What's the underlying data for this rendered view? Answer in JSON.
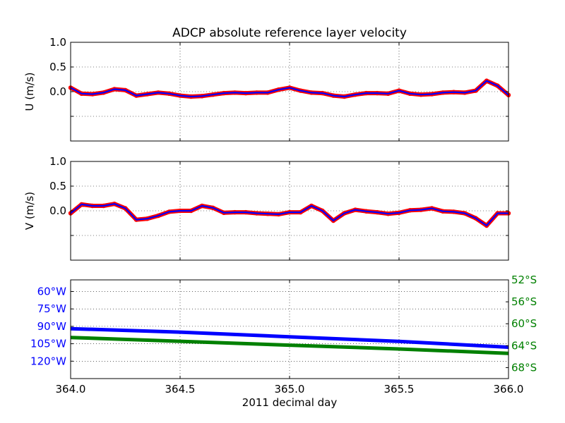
{
  "title": "ADCP absolute reference layer velocity",
  "colors": {
    "blue": "#0000ff",
    "red": "#ff0000",
    "green": "#008000",
    "grid": "#000000"
  },
  "chart_data": [
    {
      "type": "line",
      "panel": "u",
      "ylabel": "U (m/s)",
      "xlim": [
        364.0,
        366.0
      ],
      "ylim": [
        -1.0,
        1.0
      ],
      "yticks": [
        -0.5,
        0.0,
        0.5,
        1.0
      ],
      "ytick_labels": [
        "",
        "0.0",
        "0.5",
        "1.0"
      ],
      "grid": true,
      "series": [
        {
          "style": "scatter",
          "color": "red",
          "x": [
            364.0,
            364.05,
            364.1,
            364.15,
            364.2,
            364.25,
            364.3,
            364.35,
            364.4,
            364.45,
            364.5,
            364.55,
            364.6,
            364.65,
            364.7,
            364.75,
            364.8,
            364.85,
            364.9,
            364.95,
            365.0,
            365.05,
            365.1,
            365.15,
            365.2,
            365.25,
            365.3,
            365.35,
            365.4,
            365.45,
            365.5,
            365.55,
            365.6,
            365.65,
            365.7,
            365.75,
            365.8,
            365.85,
            365.9,
            365.95,
            366.0
          ],
          "y": [
            0.08,
            -0.04,
            -0.05,
            -0.02,
            0.05,
            0.03,
            -0.08,
            -0.05,
            -0.02,
            -0.04,
            -0.08,
            -0.1,
            -0.09,
            -0.06,
            -0.03,
            -0.02,
            -0.03,
            -0.02,
            -0.02,
            0.04,
            0.08,
            0.02,
            -0.02,
            -0.03,
            -0.08,
            -0.1,
            -0.06,
            -0.03,
            -0.03,
            -0.04,
            0.02,
            -0.04,
            -0.06,
            -0.05,
            -0.02,
            -0.01,
            -0.02,
            0.02,
            0.22,
            0.12,
            -0.07
          ]
        },
        {
          "style": "line",
          "color": "blue",
          "x": [
            364.0,
            364.05,
            364.1,
            364.15,
            364.2,
            364.25,
            364.3,
            364.35,
            364.4,
            364.45,
            364.5,
            364.55,
            364.6,
            364.65,
            364.7,
            364.75,
            364.8,
            364.85,
            364.9,
            364.95,
            365.0,
            365.05,
            365.1,
            365.15,
            365.2,
            365.25,
            365.3,
            365.35,
            365.4,
            365.45,
            365.5,
            365.55,
            365.6,
            365.65,
            365.7,
            365.75,
            365.8,
            365.85,
            365.9,
            365.95,
            366.0
          ],
          "y": [
            0.08,
            -0.04,
            -0.05,
            -0.02,
            0.05,
            0.03,
            -0.08,
            -0.05,
            -0.02,
            -0.04,
            -0.08,
            -0.1,
            -0.09,
            -0.06,
            -0.03,
            -0.02,
            -0.03,
            -0.02,
            -0.02,
            0.04,
            0.08,
            0.02,
            -0.02,
            -0.03,
            -0.08,
            -0.1,
            -0.06,
            -0.03,
            -0.03,
            -0.04,
            0.02,
            -0.04,
            -0.06,
            -0.05,
            -0.02,
            -0.01,
            -0.02,
            0.02,
            0.22,
            0.12,
            -0.07
          ]
        }
      ]
    },
    {
      "type": "line",
      "panel": "v",
      "ylabel": "V (m/s)",
      "xlim": [
        364.0,
        366.0
      ],
      "ylim": [
        -1.0,
        1.0
      ],
      "yticks": [
        -0.5,
        0.0,
        0.5,
        1.0
      ],
      "ytick_labels": [
        "",
        "0.0",
        "0.5",
        "1.0"
      ],
      "grid": true,
      "series": [
        {
          "style": "scatter",
          "color": "red",
          "x": [
            364.0,
            364.05,
            364.1,
            364.15,
            364.2,
            364.25,
            364.3,
            364.35,
            364.4,
            364.45,
            364.5,
            364.55,
            364.6,
            364.65,
            364.7,
            364.75,
            364.8,
            364.85,
            364.9,
            364.95,
            365.0,
            365.05,
            365.1,
            365.15,
            365.2,
            365.25,
            365.3,
            365.35,
            365.4,
            365.45,
            365.5,
            365.55,
            365.6,
            365.65,
            365.7,
            365.75,
            365.8,
            365.85,
            365.9,
            365.95,
            366.0
          ],
          "y": [
            -0.05,
            0.13,
            0.1,
            0.1,
            0.14,
            0.05,
            -0.18,
            -0.16,
            -0.1,
            -0.02,
            0.0,
            0.0,
            0.1,
            0.06,
            -0.04,
            -0.03,
            -0.03,
            -0.05,
            -0.06,
            -0.07,
            -0.03,
            -0.03,
            0.1,
            0.0,
            -0.2,
            -0.05,
            0.02,
            -0.01,
            -0.03,
            -0.06,
            -0.04,
            0.01,
            0.02,
            0.05,
            -0.01,
            -0.02,
            -0.05,
            -0.15,
            -0.3,
            -0.05,
            -0.05
          ]
        },
        {
          "style": "line",
          "color": "blue",
          "x": [
            364.0,
            364.05,
            364.1,
            364.15,
            364.2,
            364.25,
            364.3,
            364.35,
            364.4,
            364.45,
            364.5,
            364.55,
            364.6,
            364.65,
            364.7,
            364.75,
            364.8,
            364.85,
            364.9,
            364.95,
            365.0,
            365.05,
            365.1,
            365.15,
            365.2,
            365.25,
            365.3,
            365.35,
            365.4,
            365.45,
            365.5,
            365.55,
            365.6,
            365.65,
            365.7,
            365.75,
            365.8,
            365.85,
            365.9,
            365.95,
            366.0
          ],
          "y": [
            -0.05,
            0.13,
            0.1,
            0.1,
            0.14,
            0.05,
            -0.18,
            -0.16,
            -0.1,
            -0.02,
            0.0,
            0.0,
            0.1,
            0.06,
            -0.04,
            -0.03,
            -0.03,
            -0.05,
            -0.06,
            -0.07,
            -0.03,
            -0.03,
            0.1,
            0.0,
            -0.2,
            -0.05,
            0.02,
            -0.01,
            -0.03,
            -0.06,
            -0.04,
            0.01,
            0.02,
            0.05,
            -0.01,
            -0.02,
            -0.05,
            -0.15,
            -0.3,
            -0.05,
            -0.05
          ]
        }
      ]
    },
    {
      "type": "line",
      "panel": "position",
      "xlabel": "2011 decimal day",
      "xlim": [
        364.0,
        366.0
      ],
      "xticks": [
        364.0,
        364.5,
        365.0,
        365.5,
        366.0
      ],
      "xtick_labels": [
        "364.0",
        "364.5",
        "365.0",
        "365.5",
        "366.0"
      ],
      "grid": true,
      "left_axis": {
        "color": "blue",
        "ylim": [
          -135,
          -50
        ],
        "yticks": [
          -60,
          -75,
          -90,
          -105,
          -120
        ],
        "ytick_labels": [
          "60°W",
          "75°W",
          "90°W",
          "105°W",
          "120°W"
        ]
      },
      "right_axis": {
        "color": "green",
        "ylim": [
          -70,
          -52
        ],
        "yticks": [
          -52,
          -56,
          -60,
          -64,
          -68
        ],
        "ytick_labels": [
          "52°S",
          "56°S",
          "60°S",
          "64°S",
          "68°S"
        ]
      },
      "series": [
        {
          "axis": "left",
          "color": "blue",
          "x": [
            364.0,
            364.5,
            365.0,
            365.5,
            366.0
          ],
          "y": [
            -92,
            -95,
            -99,
            -103,
            -108
          ]
        },
        {
          "axis": "right",
          "color": "green",
          "x": [
            364.0,
            364.5,
            365.0,
            365.5,
            366.0
          ],
          "y": [
            -62.5,
            -63.2,
            -63.9,
            -64.6,
            -65.4
          ]
        }
      ]
    }
  ]
}
